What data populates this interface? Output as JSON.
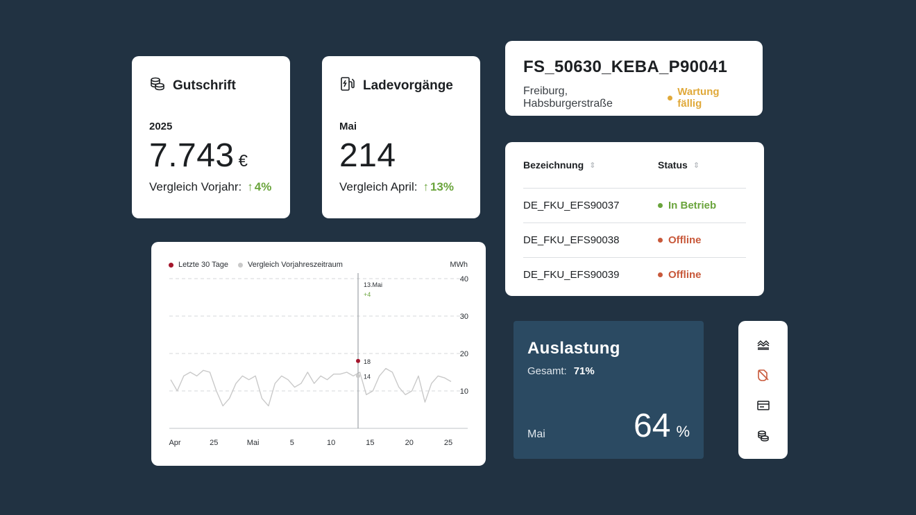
{
  "credit_card": {
    "title": "Gutschrift",
    "icon": "coins-icon",
    "period": "2025",
    "value": "7.743",
    "unit": "€",
    "compare_label": "Vergleich Vorjahr:",
    "delta": "4%"
  },
  "charging_card": {
    "title": "Ladevorgänge",
    "icon": "charging-station-icon",
    "period": "Mai",
    "value": "214",
    "compare_label": "Vergleich April:",
    "delta": "13%"
  },
  "station": {
    "id": "FS_50630_KEBA_P90041",
    "location": "Freiburg, Habsburgerstraße",
    "status": "Wartung fällig",
    "status_color": "#e0a93a"
  },
  "connectors_table": {
    "columns": [
      "Bezeichnung",
      "Status"
    ],
    "rows": [
      {
        "name": "DE_FKU_EFS90037",
        "status": "In Betrieb",
        "status_color": "#6aa43c"
      },
      {
        "name": "DE_FKU_EFS90038",
        "status": "Offline",
        "status_color": "#c8593b"
      },
      {
        "name": "DE_FKU_EFS90039",
        "status": "Offline",
        "status_color": "#c8593b"
      }
    ]
  },
  "chart": {
    "legend": [
      "Letzte 30 Tage",
      "Vergleich Vorjahreszeitraum"
    ],
    "unit": "MWh",
    "tooltip_date": "13.Mai",
    "tooltip_delta": "+4",
    "marker_current": "18",
    "marker_previous": "14"
  },
  "chart_data": {
    "type": "line",
    "ylim": [
      0,
      40
    ],
    "yticks": [
      10,
      20,
      30,
      40
    ],
    "xtick_labels": [
      "Apr",
      "25",
      "Mai",
      "5",
      "10",
      "15",
      "20",
      "25"
    ],
    "series": [
      {
        "name": "Vergleich Vorjahreszeitraum",
        "color": "#c9c9c9",
        "values": [
          13,
          10,
          14,
          15,
          14,
          15.5,
          15,
          10,
          6,
          8,
          12,
          14,
          13,
          14,
          8,
          6,
          12,
          14,
          13,
          11,
          12,
          15,
          12,
          14,
          13,
          14.5,
          14.5,
          15,
          14,
          15,
          9,
          10,
          14,
          16,
          15,
          11,
          9,
          10,
          14,
          7,
          12,
          14,
          13.5,
          12.5
        ]
      },
      {
        "name": "Letzte 30 Tage",
        "color": "#a4162c",
        "highlight_index": 22,
        "highlight_value": 18
      }
    ],
    "highlight_label": "13.Mai",
    "highlight_delta": "+4",
    "highlight_previous": 14
  },
  "utilization": {
    "title": "Auslastung",
    "total_label": "Gesamt:",
    "total_value": "71%",
    "month": "Mai",
    "value": "64",
    "unit": "%"
  },
  "side_rail": {
    "icons": [
      "chart-menu-icon",
      "no-charging-icon",
      "card-icon",
      "coins-icon"
    ]
  },
  "colors": {
    "background": "#213242",
    "positive": "#6aa43c",
    "negative": "#c8593b",
    "warning": "#e0a93a",
    "accent_dark": "#2b4a62"
  }
}
